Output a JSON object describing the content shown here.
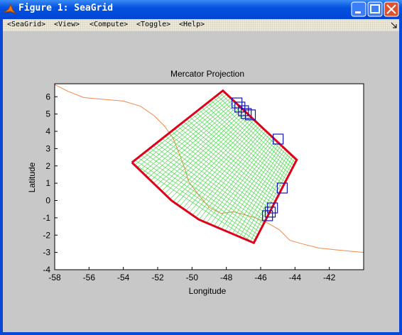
{
  "window": {
    "title": "Figure 1: SeaGrid"
  },
  "menu": [
    "<SeaGrid>",
    "<View>",
    "<Compute>",
    "<Toggle>",
    "<Help>"
  ],
  "chart_data": {
    "type": "map",
    "title": "Mercator Projection",
    "x_label": "Longitude",
    "y_label": "Latitude",
    "xlim": [
      -58,
      -40
    ],
    "ylim": [
      -4,
      6.75
    ],
    "xticks": [
      -58,
      -56,
      -54,
      -52,
      -50,
      -48,
      -46,
      -44,
      -42
    ],
    "yticks": [
      -4,
      -3,
      -2,
      -1,
      0,
      1,
      2,
      3,
      4,
      5,
      6
    ],
    "coastline": {
      "color": "#f08a4b",
      "x": [
        -58,
        -57.2,
        -56.3,
        -55.2,
        -54,
        -53,
        -52.2,
        -51.6,
        -51.1,
        -50.7,
        -50.4,
        -50.2,
        -49.6,
        -49,
        -48.3,
        -47.6,
        -47,
        -46.3,
        -45.6,
        -44.9,
        -44.3,
        -43.6,
        -42.6,
        -41.6,
        -40.6,
        -40
      ],
      "y": [
        6.7,
        6.3,
        5.95,
        5.85,
        5.75,
        5.45,
        4.9,
        4.3,
        3.6,
        2.6,
        1.8,
        1.1,
        0.3,
        -0.4,
        -0.75,
        -0.65,
        -0.8,
        -1.0,
        -1.3,
        -1.7,
        -2.3,
        -2.5,
        -2.75,
        -2.85,
        -2.95,
        -3.0
      ]
    },
    "boundary": {
      "color": "#e0001a",
      "x": [
        -53.5,
        -48.2,
        -43.9,
        -46.4,
        -49.6,
        -51.2,
        -53.5
      ],
      "y": [
        2.2,
        6.35,
        2.35,
        -2.45,
        -1.1,
        0,
        2.2
      ]
    },
    "mesh_color": "#3cd23c",
    "markers": {
      "color": "#1414b4",
      "x": [
        -47.38,
        -47.21,
        -47.0,
        -46.84,
        -46.6,
        -44.98,
        -44.74,
        -45.31,
        -45.44,
        -45.6
      ],
      "y": [
        5.64,
        5.4,
        5.19,
        5.03,
        4.95,
        3.55,
        0.72,
        -0.43,
        -0.67,
        -0.88
      ]
    }
  }
}
